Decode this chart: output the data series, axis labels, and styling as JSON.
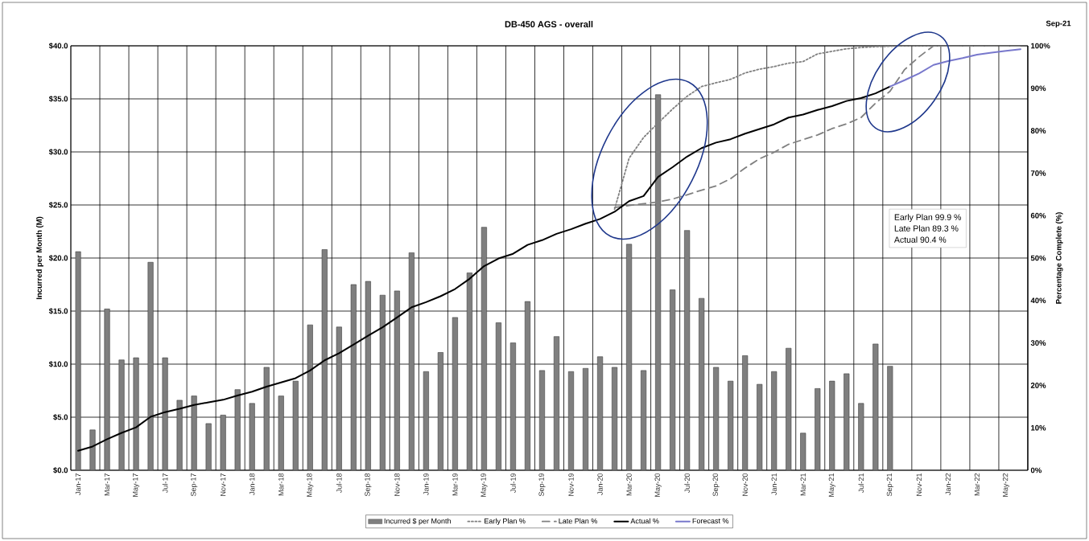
{
  "chart_data": {
    "type": "bar",
    "title": "DB-450 AGS - overall",
    "ylabel": "Incurred per Month (M)",
    "y2label": "Percentage Complete (%)",
    "categories": [
      "Jan-17",
      null,
      "Mar-17",
      null,
      "May-17",
      null,
      "Jul-17",
      null,
      "Sep-17",
      null,
      "Nov-17",
      null,
      "Jan-18",
      null,
      "Mar-18",
      null,
      "May-18",
      null,
      "Jul-18",
      null,
      "Sep-18",
      null,
      "Nov-18",
      null,
      "Jan-19",
      null,
      "Mar-19",
      null,
      "May-19",
      null,
      "Jul-19",
      null,
      "Sep-19",
      null,
      "Nov-19",
      null,
      "Jan-20",
      null,
      "Mar-20",
      null,
      "May-20",
      null,
      "Jul-20",
      null,
      "Sep-20",
      null,
      "Nov-20",
      null,
      "Jan-21",
      null,
      "Mar-21",
      null,
      "May-21",
      null,
      "Jul-21",
      null,
      "Sep-21",
      null,
      "Nov-21",
      null,
      "Jan-22",
      null,
      "Mar-22",
      null,
      "May-22",
      null
    ],
    "series": [
      {
        "name": "Incurred $ per Month",
        "axis": "y",
        "color": "#7f7f7f",
        "values": [
          20.6,
          3.8,
          15.2,
          10.4,
          10.6,
          19.6,
          10.6,
          6.6,
          7.0,
          4.4,
          5.2,
          7.6,
          6.3,
          9.7,
          7.0,
          8.4,
          13.7,
          20.8,
          13.5,
          17.5,
          17.8,
          16.5,
          16.9,
          20.5,
          9.3,
          11.1,
          14.4,
          18.6,
          22.9,
          13.9,
          12.0,
          15.9,
          9.4,
          12.6,
          9.3,
          9.6,
          10.7,
          9.7,
          21.3,
          9.4,
          35.4,
          17.0,
          22.6,
          16.2,
          9.7,
          8.4,
          10.8,
          8.1,
          9.3,
          11.5,
          3.5,
          7.7,
          8.4,
          9.1,
          6.3,
          11.9,
          9.8,
          null,
          null,
          null,
          null,
          null,
          null,
          null,
          null,
          null
        ]
      },
      {
        "name": "Early Plan %",
        "type": "line",
        "axis": "y2",
        "line_style": "dotted",
        "color": "#808080",
        "values": [
          null,
          null,
          null,
          null,
          null,
          null,
          null,
          null,
          null,
          null,
          null,
          null,
          null,
          null,
          null,
          null,
          null,
          null,
          null,
          null,
          null,
          null,
          null,
          null,
          null,
          null,
          null,
          null,
          null,
          null,
          null,
          null,
          null,
          null,
          null,
          null,
          null,
          61.5,
          73.5,
          78.4,
          81.8,
          85.1,
          88.1,
          90.4,
          91.3,
          92.1,
          93.6,
          94.5,
          95.1,
          95.9,
          96.3,
          98.1,
          98.7,
          99.3,
          99.6,
          99.8,
          99.9,
          100,
          100,
          100,
          100,
          100,
          100,
          100,
          100,
          100
        ]
      },
      {
        "name": "Late Plan %",
        "type": "line",
        "axis": "y2",
        "line_style": "dashed",
        "color": "#808080",
        "values": [
          null,
          null,
          null,
          null,
          null,
          null,
          null,
          null,
          null,
          null,
          null,
          null,
          null,
          null,
          null,
          null,
          null,
          null,
          null,
          null,
          null,
          null,
          null,
          null,
          null,
          null,
          null,
          null,
          null,
          null,
          null,
          null,
          null,
          null,
          null,
          null,
          null,
          61.9,
          62.4,
          62.8,
          63.2,
          63.9,
          64.9,
          66.0,
          67.0,
          68.7,
          71.2,
          73.4,
          74.9,
          76.8,
          77.9,
          79.0,
          80.5,
          81.6,
          83.1,
          86.5,
          89.3,
          94.4,
          97.4,
          100,
          100,
          100,
          100,
          100,
          100,
          100
        ]
      },
      {
        "name": "Actual %",
        "type": "line",
        "axis": "y2",
        "line_style": "solid",
        "color": "#000000",
        "values": [
          4.6,
          5.6,
          7.3,
          8.8,
          10.1,
          12.6,
          13.7,
          14.5,
          15.4,
          16.0,
          16.6,
          17.6,
          18.5,
          19.7,
          20.7,
          21.7,
          23.5,
          25.9,
          27.6,
          29.6,
          31.7,
          33.7,
          36.0,
          38.4,
          39.6,
          41.0,
          42.7,
          45.1,
          48.1,
          49.9,
          51.0,
          53.1,
          54.2,
          55.7,
          56.8,
          58.1,
          59.2,
          60.9,
          63.4,
          64.6,
          69.1,
          71.4,
          73.9,
          75.9,
          77.2,
          78.0,
          79.3,
          80.4,
          81.5,
          83.1,
          83.8,
          84.9,
          85.8,
          87.0,
          87.7,
          88.8,
          90.4,
          null,
          null,
          null,
          null,
          null,
          null,
          null,
          null,
          null
        ]
      },
      {
        "name": "Forecast %",
        "type": "line",
        "axis": "y2",
        "line_style": "solid",
        "color": "#7878cc",
        "values": [
          null,
          null,
          null,
          null,
          null,
          null,
          null,
          null,
          null,
          null,
          null,
          null,
          null,
          null,
          null,
          null,
          null,
          null,
          null,
          null,
          null,
          null,
          null,
          null,
          null,
          null,
          null,
          null,
          null,
          null,
          null,
          null,
          null,
          null,
          null,
          null,
          null,
          null,
          null,
          null,
          null,
          null,
          null,
          null,
          null,
          null,
          null,
          null,
          null,
          null,
          null,
          null,
          null,
          null,
          null,
          null,
          90.4,
          91.9,
          93.5,
          95.5,
          96.4,
          97.1,
          97.9,
          98.4,
          98.8,
          99.2
        ]
      }
    ],
    "ylim": [
      0,
      40
    ],
    "yticks": [
      {
        "value": 0,
        "label": "$0.0"
      },
      {
        "value": 5,
        "label": "$5.0"
      },
      {
        "value": 10,
        "label": "$10.0"
      },
      {
        "value": 15,
        "label": "$15.0"
      },
      {
        "value": 20,
        "label": "$20.0"
      },
      {
        "value": 25,
        "label": "$25.0"
      },
      {
        "value": 30,
        "label": "$30.0"
      },
      {
        "value": 35,
        "label": "$35.0"
      },
      {
        "value": 40,
        "label": "$40.0"
      }
    ],
    "y2lim": [
      0,
      100
    ],
    "y2ticks": [
      {
        "value": 0,
        "label": "0%"
      },
      {
        "value": 10,
        "label": "10%"
      },
      {
        "value": 20,
        "label": "20%"
      },
      {
        "value": 30,
        "label": "30%"
      },
      {
        "value": 40,
        "label": "40%"
      },
      {
        "value": 50,
        "label": "50%"
      },
      {
        "value": 60,
        "label": "60%"
      },
      {
        "value": 70,
        "label": "70%"
      },
      {
        "value": 80,
        "label": "80%"
      },
      {
        "value": 90,
        "label": "90%"
      },
      {
        "value": 100,
        "label": "100%"
      }
    ],
    "grid": true,
    "legend": "bottom",
    "annotations": [
      "Sep-21",
      "Early Plan 99.9 %",
      "Late Plan 89.3 %",
      "Actual  90.4 %"
    ]
  }
}
